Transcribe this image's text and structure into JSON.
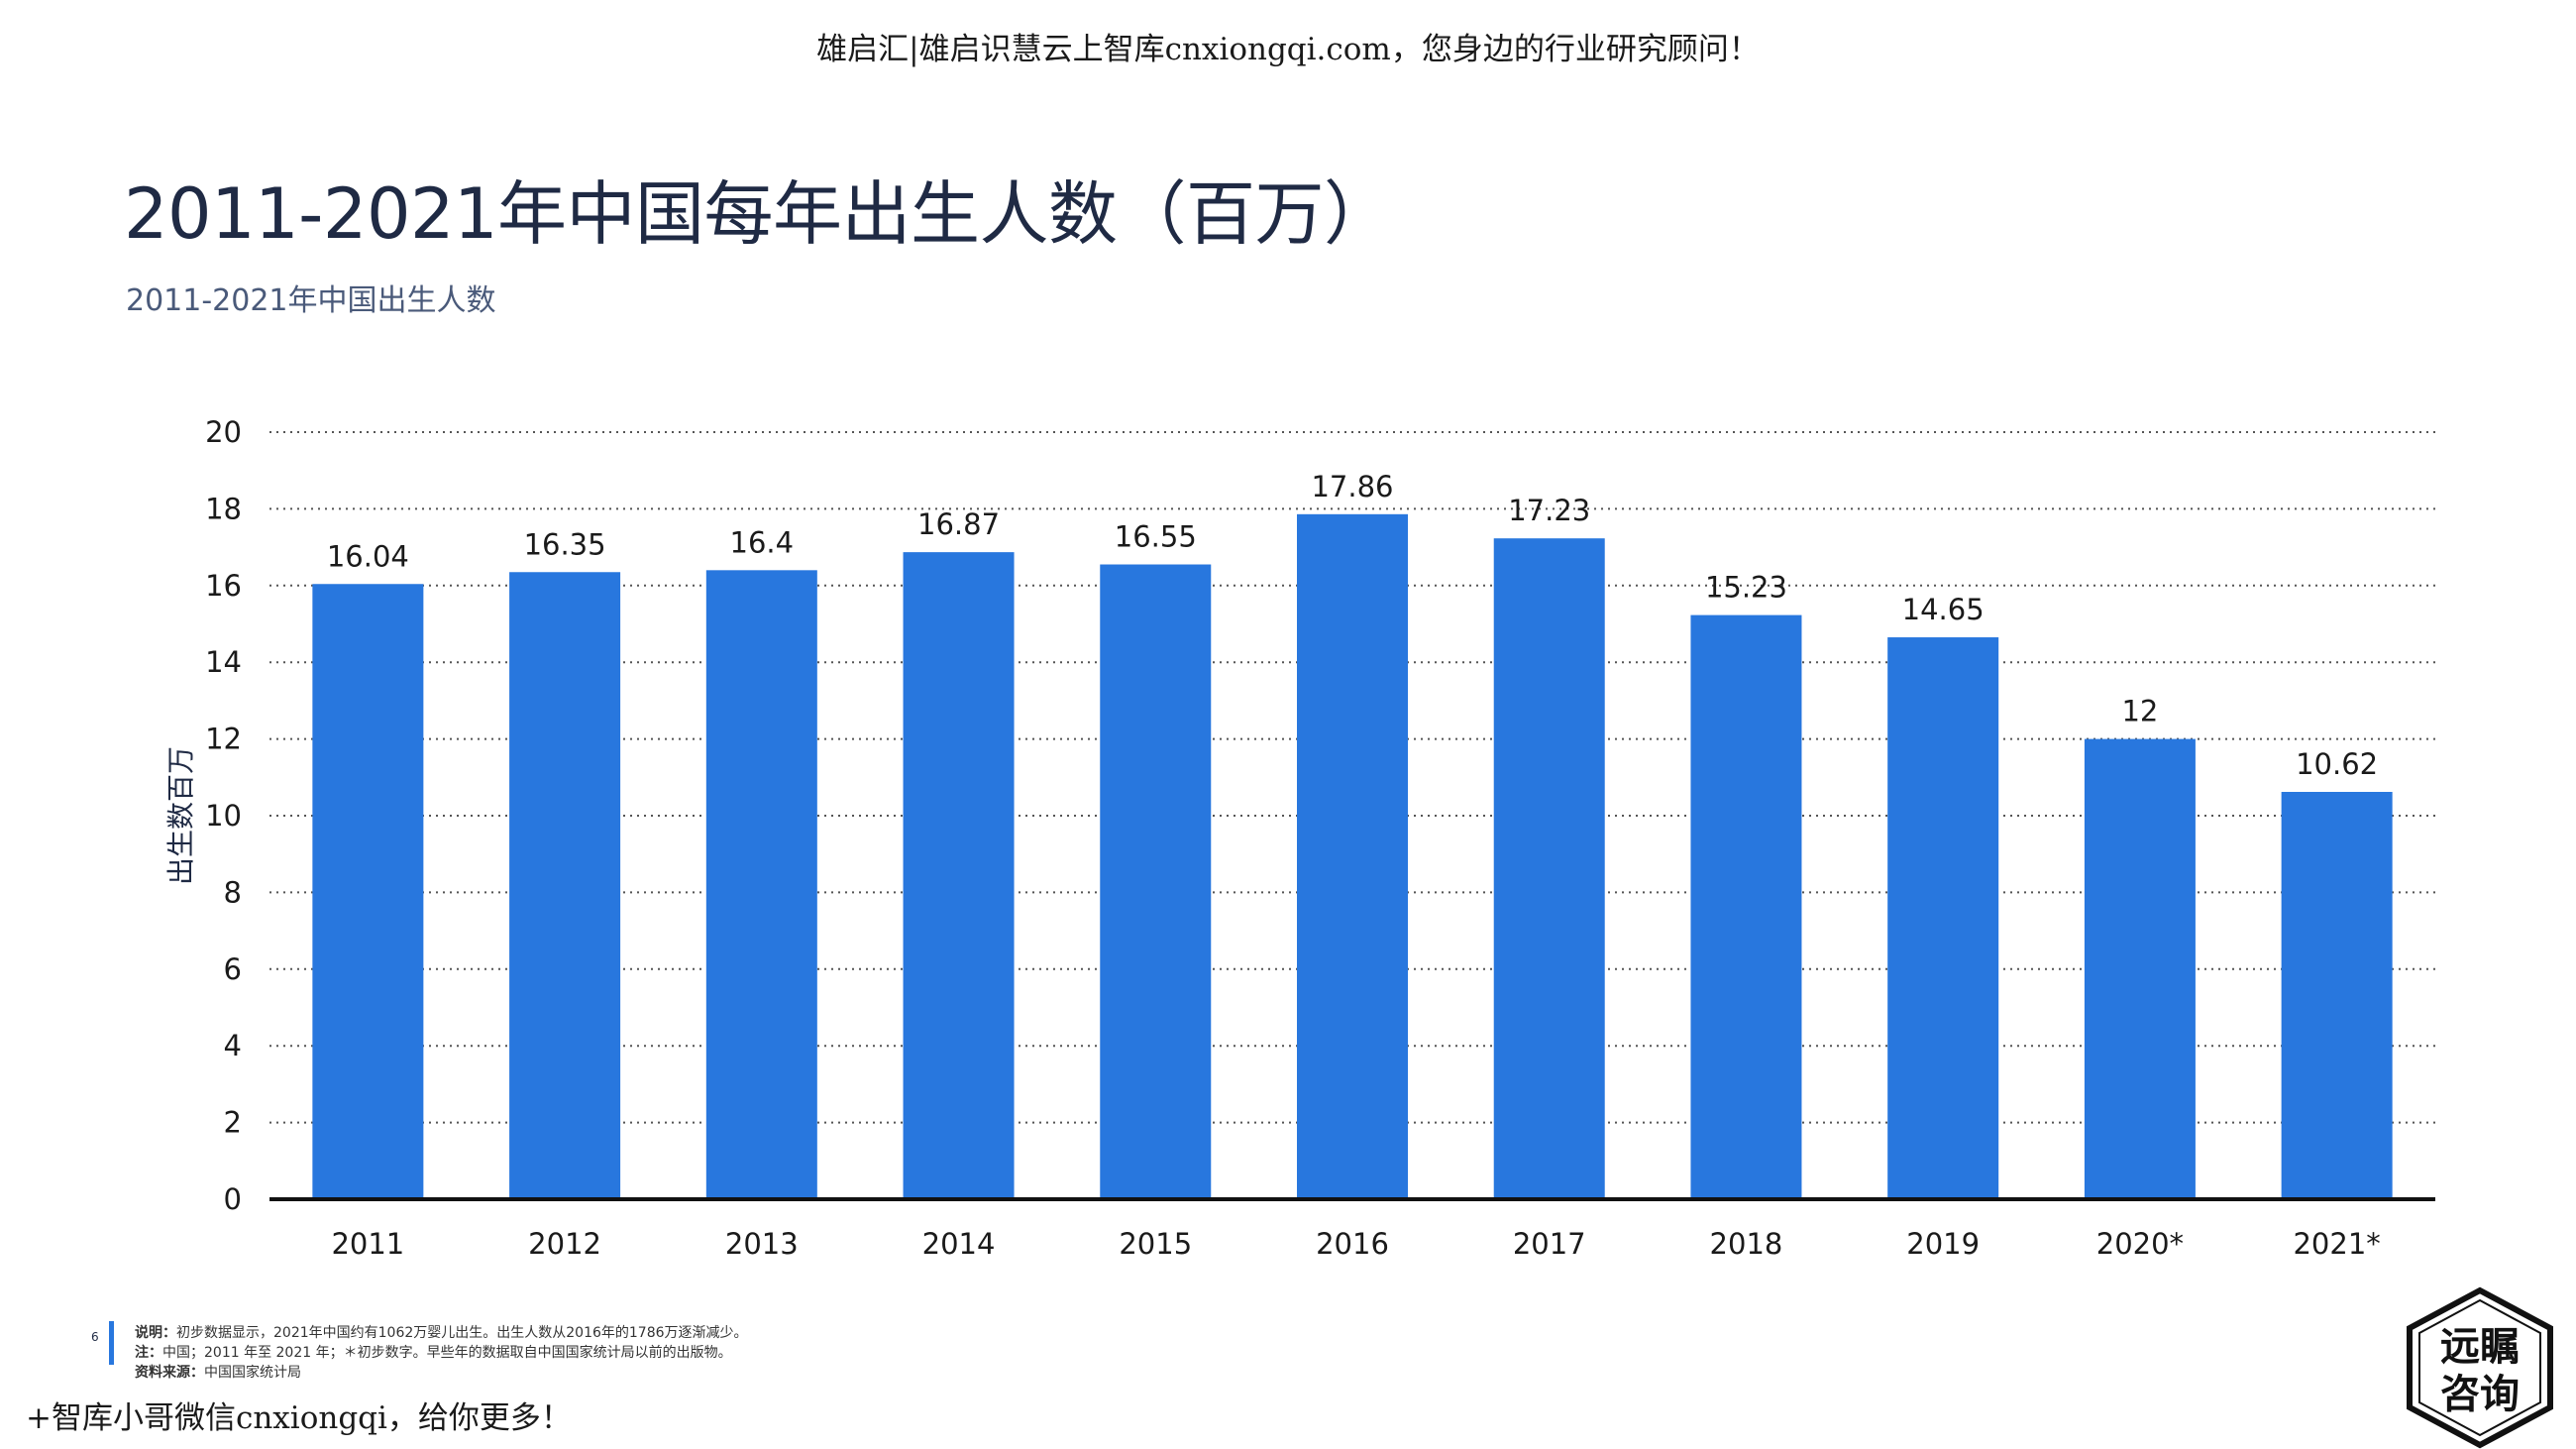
{
  "header": {
    "watermark": "雄启汇|雄启识慧云上智库cnxiongqi.com，您身边的行业研究顾问！"
  },
  "title": "2011-2021年中国每年出生人数（百万）",
  "subtitle": "2011-2021年中国出生人数",
  "chart_data": {
    "type": "bar",
    "categories": [
      "2011",
      "2012",
      "2013",
      "2014",
      "2015",
      "2016",
      "2017",
      "2018",
      "2019",
      "2020*",
      "2021*"
    ],
    "values": [
      16.04,
      16.35,
      16.4,
      16.87,
      16.55,
      17.86,
      17.23,
      15.23,
      14.65,
      12,
      10.62
    ],
    "value_labels": [
      "16.04",
      "16.35",
      "16.4",
      "16.87",
      "16.55",
      "17.86",
      "17.23",
      "15.23",
      "14.65",
      "12",
      "10.62"
    ],
    "ylabel": "出生数百万",
    "xlabel": "",
    "ylim": [
      0,
      20
    ],
    "yticks": [
      0,
      2,
      4,
      6,
      8,
      10,
      12,
      14,
      16,
      18,
      20
    ],
    "grid": true,
    "bar_color": "#2877de"
  },
  "footer": {
    "page_number": "6",
    "note_label_1": "说明：",
    "note_text_1": "初步数据显示，2021年中国约有1062万婴儿出生。出生人数从2016年的1786万逐渐减少。",
    "note_label_2": "注：",
    "note_text_2": "中国；2011 年至 2021 年；＊初步数字。早些年的数据取自中国国家统计局以前的出版物。",
    "note_label_3": "资料来源：",
    "note_text_3": "中国国家统计局",
    "watermark": "+智库小哥微信cnxiongqi，给你更多！"
  },
  "logo": {
    "text_line1": "远瞩",
    "text_line2": "咨询"
  }
}
